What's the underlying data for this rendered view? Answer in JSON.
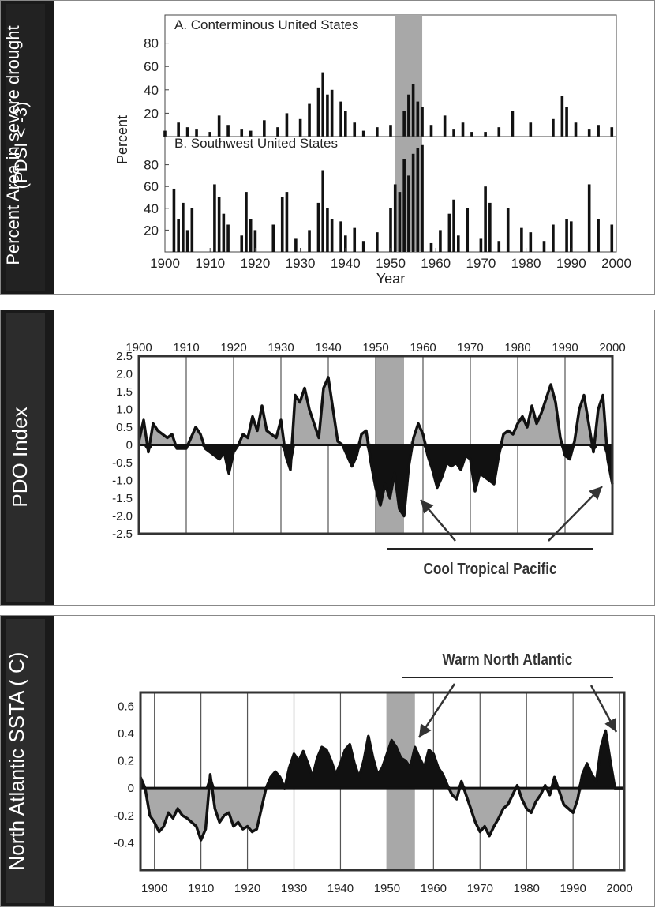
{
  "panels": [
    {
      "side_label_1": "Percent Area in severe drought",
      "side_label_2": "(PDSI < -3)"
    },
    {
      "side_label": "PDO Index"
    },
    {
      "side_label": "North Atlantic SSTA ( C)"
    }
  ],
  "chart_data": [
    {
      "type": "bar",
      "ylabel": "Percent",
      "xlabel": "Year",
      "xlim": [
        1900,
        2000
      ],
      "x_ticks": [
        "1900",
        "1910",
        "1920",
        "1930",
        "1940",
        "1950",
        "1960",
        "1970",
        "1980",
        "1990",
        "2000"
      ],
      "highlight_years": [
        1951,
        1957
      ],
      "subplots": [
        {
          "label": "A. Conterminous United States",
          "ylim": [
            0,
            100
          ],
          "y_ticks": [
            "20",
            "40",
            "60",
            "80"
          ],
          "x": [
            1900,
            1903,
            1905,
            1907,
            1910,
            1912,
            1914,
            1917,
            1919,
            1922,
            1925,
            1927,
            1930,
            1932,
            1934,
            1935,
            1936,
            1937,
            1939,
            1940,
            1942,
            1944,
            1947,
            1950,
            1953,
            1954,
            1955,
            1956,
            1957,
            1959,
            1962,
            1964,
            1966,
            1968,
            1971,
            1974,
            1977,
            1981,
            1986,
            1988,
            1989,
            1991,
            1994,
            1996,
            1999
          ],
          "values": [
            5,
            12,
            8,
            6,
            4,
            18,
            10,
            6,
            5,
            14,
            8,
            20,
            15,
            28,
            42,
            55,
            36,
            40,
            30,
            22,
            12,
            5,
            8,
            10,
            22,
            36,
            45,
            30,
            25,
            10,
            18,
            6,
            12,
            4,
            4,
            8,
            22,
            12,
            15,
            35,
            25,
            12,
            6,
            10,
            8
          ]
        },
        {
          "label": "B. Southwest United States",
          "ylim": [
            0,
            100
          ],
          "y_ticks": [
            "20",
            "40",
            "60",
            "80"
          ],
          "x": [
            1902,
            1903,
            1904,
            1905,
            1906,
            1911,
            1912,
            1913,
            1914,
            1917,
            1918,
            1919,
            1920,
            1924,
            1926,
            1927,
            1929,
            1932,
            1934,
            1935,
            1936,
            1937,
            1939,
            1940,
            1942,
            1944,
            1947,
            1950,
            1951,
            1952,
            1953,
            1954,
            1955,
            1956,
            1957,
            1959,
            1961,
            1963,
            1964,
            1965,
            1967,
            1970,
            1971,
            1972,
            1974,
            1976,
            1979,
            1981,
            1984,
            1986,
            1989,
            1990,
            1994,
            1996,
            1999
          ],
          "values": [
            58,
            30,
            45,
            20,
            40,
            62,
            50,
            35,
            25,
            15,
            55,
            30,
            20,
            25,
            50,
            55,
            12,
            20,
            45,
            75,
            40,
            30,
            28,
            15,
            22,
            10,
            18,
            40,
            62,
            55,
            85,
            70,
            90,
            95,
            98,
            8,
            20,
            35,
            48,
            15,
            40,
            12,
            60,
            45,
            10,
            40,
            22,
            18,
            10,
            25,
            30,
            28,
            62,
            30,
            25
          ]
        }
      ]
    },
    {
      "type": "area",
      "ylabel": "PDO Index",
      "annotation": "Cool Tropical Pacific",
      "xlim": [
        1900,
        2000
      ],
      "ylim": [
        -2.5,
        2.5
      ],
      "x_ticks": [
        "1900",
        "1910",
        "1920",
        "1930",
        "1940",
        "1950",
        "1960",
        "1970",
        "1980",
        "1990",
        "2000"
      ],
      "y_ticks": [
        "2.5",
        "2.0",
        "1.5",
        "1.0",
        "0.5",
        "0",
        "-0.5",
        "-1.0",
        "-1.5",
        "-2.0",
        "-2.5"
      ],
      "highlight_years": [
        1950,
        1956
      ],
      "x": [
        1900,
        1901,
        1902,
        1903,
        1904,
        1905,
        1906,
        1907,
        1908,
        1909,
        1910,
        1911,
        1912,
        1913,
        1914,
        1915,
        1916,
        1917,
        1918,
        1919,
        1920,
        1921,
        1922,
        1923,
        1924,
        1925,
        1926,
        1927,
        1928,
        1929,
        1930,
        1931,
        1932,
        1933,
        1934,
        1935,
        1936,
        1937,
        1938,
        1939,
        1940,
        1941,
        1942,
        1943,
        1944,
        1945,
        1946,
        1947,
        1948,
        1949,
        1950,
        1951,
        1952,
        1953,
        1954,
        1955,
        1956,
        1957,
        1958,
        1959,
        1960,
        1961,
        1962,
        1963,
        1964,
        1965,
        1966,
        1967,
        1968,
        1969,
        1970,
        1971,
        1972,
        1973,
        1974,
        1975,
        1976,
        1977,
        1978,
        1979,
        1980,
        1981,
        1982,
        1983,
        1984,
        1985,
        1986,
        1987,
        1988,
        1989,
        1990,
        1991,
        1992,
        1993,
        1994,
        1995,
        1996,
        1997,
        1998,
        1999,
        2000
      ],
      "values": [
        0.1,
        0.7,
        -0.2,
        0.6,
        0.4,
        0.3,
        0.2,
        0.3,
        -0.1,
        -0.1,
        -0.1,
        0.2,
        0.5,
        0.3,
        -0.1,
        -0.2,
        -0.3,
        -0.4,
        -0.2,
        -0.8,
        -0.2,
        0.0,
        0.3,
        0.2,
        0.8,
        0.4,
        1.1,
        0.4,
        0.3,
        0.2,
        0.7,
        -0.3,
        -0.7,
        1.4,
        1.2,
        1.6,
        1.0,
        0.6,
        0.2,
        1.6,
        1.9,
        1.0,
        0.1,
        0.0,
        -0.3,
        -0.6,
        -0.3,
        0.3,
        0.4,
        -0.5,
        -1.2,
        -1.7,
        -1.1,
        -1.5,
        -0.8,
        -1.8,
        -2.0,
        -0.6,
        0.2,
        0.6,
        0.3,
        -0.3,
        -0.7,
        -1.2,
        -0.9,
        -0.5,
        -0.6,
        -0.5,
        -0.7,
        -0.3,
        -0.4,
        -1.3,
        -0.8,
        -0.9,
        -1.0,
        -1.1,
        -0.3,
        0.3,
        0.4,
        0.3,
        0.6,
        0.8,
        0.5,
        1.1,
        0.6,
        0.9,
        1.3,
        1.7,
        1.2,
        0.2,
        -0.3,
        -0.4,
        0.1,
        1.0,
        1.4,
        0.6,
        -0.2,
        1.0,
        1.4,
        -0.4,
        -1.1
      ]
    },
    {
      "type": "area",
      "ylabel": "North Atlantic SSTA ( C)",
      "annotation": "Warm North Atlantic",
      "xlim": [
        1897,
        2001
      ],
      "ylim": [
        -0.6,
        0.7
      ],
      "x_ticks": [
        "1900",
        "1910",
        "1920",
        "1930",
        "1940",
        "1950",
        "1960",
        "1970",
        "1980",
        "1990",
        "2000"
      ],
      "y_ticks": [
        "0.6",
        "0.4",
        "0.2",
        "0",
        "-0.2",
        "-0.4"
      ],
      "highlight_years": [
        1950,
        1956
      ],
      "x": [
        1897,
        1898,
        1899,
        1900,
        1901,
        1902,
        1903,
        1904,
        1905,
        1906,
        1907,
        1908,
        1909,
        1910,
        1911,
        1912,
        1913,
        1914,
        1915,
        1916,
        1917,
        1918,
        1919,
        1920,
        1921,
        1922,
        1923,
        1924,
        1925,
        1926,
        1927,
        1928,
        1929,
        1930,
        1931,
        1932,
        1933,
        1934,
        1935,
        1936,
        1937,
        1938,
        1939,
        1940,
        1941,
        1942,
        1943,
        1944,
        1945,
        1946,
        1947,
        1948,
        1949,
        1950,
        1951,
        1952,
        1953,
        1954,
        1955,
        1956,
        1957,
        1958,
        1959,
        1960,
        1961,
        1962,
        1963,
        1964,
        1965,
        1966,
        1967,
        1968,
        1969,
        1970,
        1971,
        1972,
        1973,
        1974,
        1975,
        1976,
        1977,
        1978,
        1979,
        1980,
        1981,
        1982,
        1983,
        1984,
        1985,
        1986,
        1987,
        1988,
        1989,
        1990,
        1991,
        1992,
        1993,
        1994,
        1995,
        1996,
        1997,
        1998,
        1999,
        2000,
        2001
      ],
      "values": [
        0.08,
        0.0,
        -0.2,
        -0.25,
        -0.32,
        -0.28,
        -0.18,
        -0.22,
        -0.15,
        -0.2,
        -0.22,
        -0.25,
        -0.28,
        -0.38,
        -0.3,
        0.1,
        -0.15,
        -0.25,
        -0.2,
        -0.18,
        -0.28,
        -0.25,
        -0.3,
        -0.28,
        -0.32,
        -0.3,
        -0.15,
        0.0,
        0.08,
        0.12,
        0.08,
        0.0,
        0.15,
        0.25,
        0.2,
        0.27,
        0.18,
        0.08,
        0.22,
        0.3,
        0.28,
        0.2,
        0.1,
        0.18,
        0.28,
        0.32,
        0.18,
        0.08,
        0.2,
        0.38,
        0.22,
        0.1,
        0.15,
        0.25,
        0.35,
        0.3,
        0.22,
        0.2,
        0.15,
        0.3,
        0.22,
        0.15,
        0.28,
        0.25,
        0.15,
        0.1,
        0.02,
        -0.05,
        -0.08,
        0.05,
        -0.05,
        -0.15,
        -0.25,
        -0.32,
        -0.28,
        -0.35,
        -0.28,
        -0.22,
        -0.15,
        -0.12,
        -0.05,
        0.02,
        -0.08,
        -0.15,
        -0.18,
        -0.1,
        -0.05,
        0.02,
        -0.05,
        0.08,
        -0.02,
        -0.12,
        -0.15,
        -0.18,
        -0.08,
        0.1,
        0.18,
        0.1,
        0.05,
        0.3,
        0.42,
        0.2,
        0.0,
        0.0,
        0.0
      ]
    }
  ]
}
